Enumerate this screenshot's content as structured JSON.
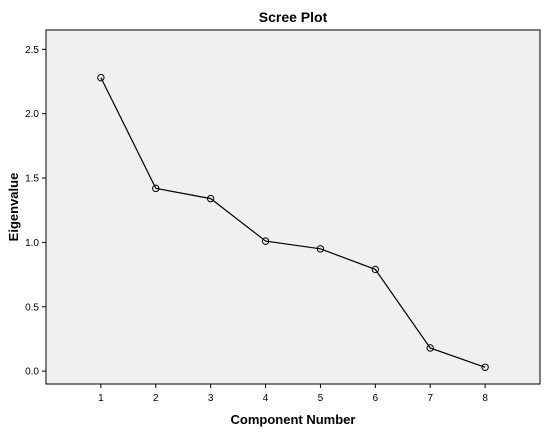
{
  "chart_data": {
    "type": "line",
    "title": "Scree Plot",
    "xlabel": "Component Number",
    "ylabel": "Eigenvalue",
    "x": [
      1,
      2,
      3,
      4,
      5,
      6,
      7,
      8
    ],
    "series": [
      {
        "values": [
          2.28,
          1.42,
          1.34,
          1.01,
          0.95,
          0.79,
          0.18,
          0.03
        ]
      }
    ],
    "xlim": [
      0,
      9
    ],
    "ylim": [
      -0.1,
      2.65
    ],
    "yticks": [
      "0.0",
      "0.5",
      "1.0",
      "1.5",
      "2.0",
      "2.5"
    ],
    "xticks": [
      "1",
      "2",
      "3",
      "4",
      "5",
      "6",
      "7",
      "8"
    ],
    "grid": false,
    "legend": "none",
    "colors": {
      "plot_background": "#f0f0f0",
      "line": "#000000",
      "marker_stroke": "#000000"
    }
  }
}
